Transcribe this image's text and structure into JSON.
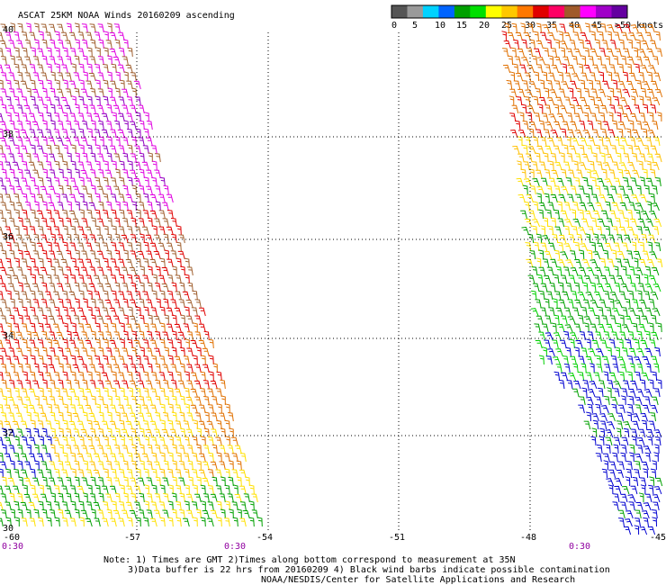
{
  "title": "ASCAT 25KM NOAA Winds 20160209 ascending",
  "colorbar": {
    "colors": [
      "#555555",
      "#9a9a9a",
      "#00d2ff",
      "#0064ff",
      "#00a000",
      "#00e000",
      "#ffff00",
      "#ffc800",
      "#ff7800",
      "#e00000",
      "#ff0064",
      "#a05a2a",
      "#ff00ff",
      "#a000c8",
      "#6400a0"
    ],
    "ticks": [
      "0",
      "5",
      "10",
      "15",
      "20",
      "25",
      "30",
      "35",
      "40",
      "45",
      ">50 knots"
    ]
  },
  "lat_labels": [
    "40",
    "38",
    "36",
    "34",
    "32",
    "30"
  ],
  "lon_labels": [
    "-60",
    "-57",
    "-54",
    "-51",
    "-48",
    "-45"
  ],
  "time_labels": [
    "0:30",
    "0:30",
    "0:30"
  ],
  "notes": [
    "Note: 1) Times are GMT 2)Times along bottom correspond to measurement at 35N",
    "3)Data buffer is 22 hrs from 20160209 4) Black wind barbs indicate possible contamination",
    "NOAA/NESDIS/Center for Satellite Applications and Research"
  ],
  "wind_speed_colors": {
    "black": "#000000",
    "green": "#00a000",
    "lightgreen": "#00d000",
    "yellow": "#ffe000",
    "gold": "#ffc000",
    "orange": "#e07000",
    "red": "#e00000",
    "brown": "#a06030",
    "magenta": "#e000e0",
    "purple": "#9000c0",
    "blue": "#0000d0"
  }
}
